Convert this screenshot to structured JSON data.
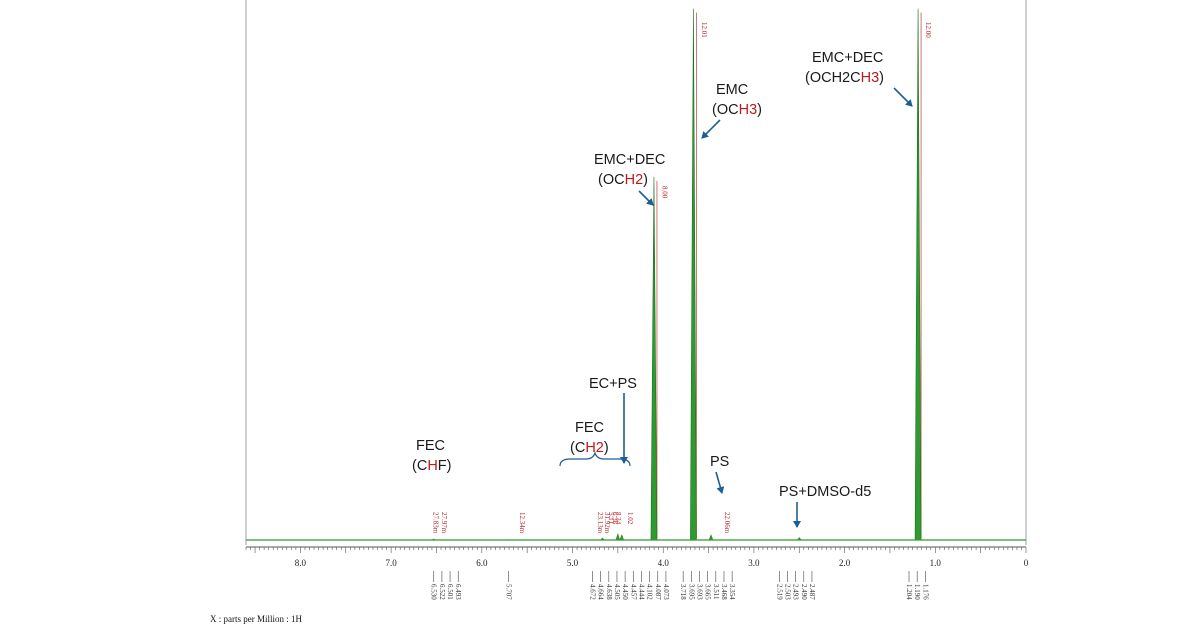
{
  "chart_data": {
    "type": "line",
    "xlabel": "X : parts per Million : 1H",
    "xlim": [
      8.6,
      0.0
    ],
    "ticks": [
      {
        "v": 8.0,
        "label": "8.0"
      },
      {
        "v": 7.0,
        "label": "7.0"
      },
      {
        "v": 6.0,
        "label": "6.0"
      },
      {
        "v": 5.0,
        "label": "5.0"
      },
      {
        "v": 4.0,
        "label": "4.0"
      },
      {
        "v": 3.0,
        "label": "3.0"
      },
      {
        "v": 2.0,
        "label": "2.0"
      },
      {
        "v": 1.0,
        "label": "1.0"
      },
      {
        "v": 0.0,
        "label": "0"
      }
    ],
    "peaks": [
      {
        "ppm": 6.53,
        "h": 0.002
      },
      {
        "ppm": 5.707,
        "h": 0.001
      },
      {
        "ppm": 4.67,
        "h": 0.004
      },
      {
        "ppm": 4.5,
        "h": 0.012
      },
      {
        "ppm": 4.457,
        "h": 0.01
      },
      {
        "ppm": 4.102,
        "h": 0.68
      },
      {
        "ppm": 3.667,
        "h": 0.995
      },
      {
        "ppm": 3.473,
        "h": 0.01
      },
      {
        "ppm": 2.5,
        "h": 0.005
      },
      {
        "ppm": 1.19,
        "h": 0.995
      }
    ],
    "integrals": [
      {
        "ppm": 6.53,
        "label": "27.83m"
      },
      {
        "ppm": 6.44,
        "label": "27.97m"
      },
      {
        "ppm": 5.58,
        "label": "12.34m"
      },
      {
        "ppm": 4.72,
        "label": "23.13m"
      },
      {
        "ppm": 4.64,
        "label": "31.92m"
      },
      {
        "ppm": 4.6,
        "label": "5.11"
      },
      {
        "ppm": 4.56,
        "label": "6.36"
      },
      {
        "ppm": 4.52,
        "label": "8.34"
      },
      {
        "ppm": 4.39,
        "label": "1.02"
      },
      {
        "ppm": 4.01,
        "label": "8.00"
      },
      {
        "ppm": 3.57,
        "label": "12.01"
      },
      {
        "ppm": 3.32,
        "label": "22.06m"
      },
      {
        "ppm": 1.1,
        "label": "12.00"
      }
    ],
    "peak_labels": [
      {
        "ppm": 6.53,
        "label": "6.530"
      },
      {
        "ppm": 6.44,
        "label": "6.522"
      },
      {
        "ppm": 6.35,
        "label": "6.501"
      },
      {
        "ppm": 6.26,
        "label": "6.493"
      },
      {
        "ppm": 5.707,
        "label": "5.707"
      },
      {
        "ppm": 4.78,
        "label": "4.672"
      },
      {
        "ppm": 4.69,
        "label": "4.664"
      },
      {
        "ppm": 4.6,
        "label": "4.638"
      },
      {
        "ppm": 4.51,
        "label": "4.505"
      },
      {
        "ppm": 4.42,
        "label": "4.450"
      },
      {
        "ppm": 4.33,
        "label": "4.457"
      },
      {
        "ppm": 4.24,
        "label": "4.444"
      },
      {
        "ppm": 4.15,
        "label": "4.102"
      },
      {
        "ppm": 4.06,
        "label": "4.087"
      },
      {
        "ppm": 3.97,
        "label": "4.073"
      },
      {
        "ppm": 3.78,
        "label": "3.718"
      },
      {
        "ppm": 3.69,
        "label": "3.695"
      },
      {
        "ppm": 3.6,
        "label": "3.693"
      },
      {
        "ppm": 3.51,
        "label": "3.665"
      },
      {
        "ppm": 3.42,
        "label": "3.511"
      },
      {
        "ppm": 3.33,
        "label": "3.468"
      },
      {
        "ppm": 3.24,
        "label": "3.354"
      },
      {
        "ppm": 2.72,
        "label": "2.519"
      },
      {
        "ppm": 2.63,
        "label": "2.503"
      },
      {
        "ppm": 2.54,
        "label": "2.493"
      },
      {
        "ppm": 2.45,
        "label": "2.490"
      },
      {
        "ppm": 2.36,
        "label": "2.487"
      },
      {
        "ppm": 1.29,
        "label": "1.204"
      },
      {
        "ppm": 1.2,
        "label": "1.190"
      },
      {
        "ppm": 1.11,
        "label": "1.176"
      }
    ],
    "annotations": {
      "fec_chf": {
        "line1": "FEC",
        "line2_pre": "(C",
        "line2_red": "H",
        "line2_post": "F)"
      },
      "fec_ch2": {
        "line1": "FEC",
        "line2_pre": "(C",
        "line2_red": "H2",
        "line2_post": ")"
      },
      "ec_ps": {
        "line1": "EC+PS"
      },
      "emc_dec_och2": {
        "line1": "EMC+DEC",
        "line2_pre": "(OC",
        "line2_red": "H2",
        "line2_post": ")"
      },
      "emc_och3": {
        "line1": "EMC",
        "line2_pre": "(OC",
        "line2_red": "H3",
        "line2_post": ")"
      },
      "ps": {
        "line1": "PS"
      },
      "ps_dmso": {
        "line1": "PS+DMSO-d5"
      },
      "emc_dec_ch3": {
        "line1": "EMC+DEC",
        "line2_pre": "(OCH2C",
        "line2_red": "H3",
        "line2_post": ")"
      }
    },
    "colors": {
      "spectrum": "#2f9a2f",
      "integral": "#c23a3a",
      "arrow": "#1d5e96",
      "highlight": "#c0181c"
    }
  }
}
